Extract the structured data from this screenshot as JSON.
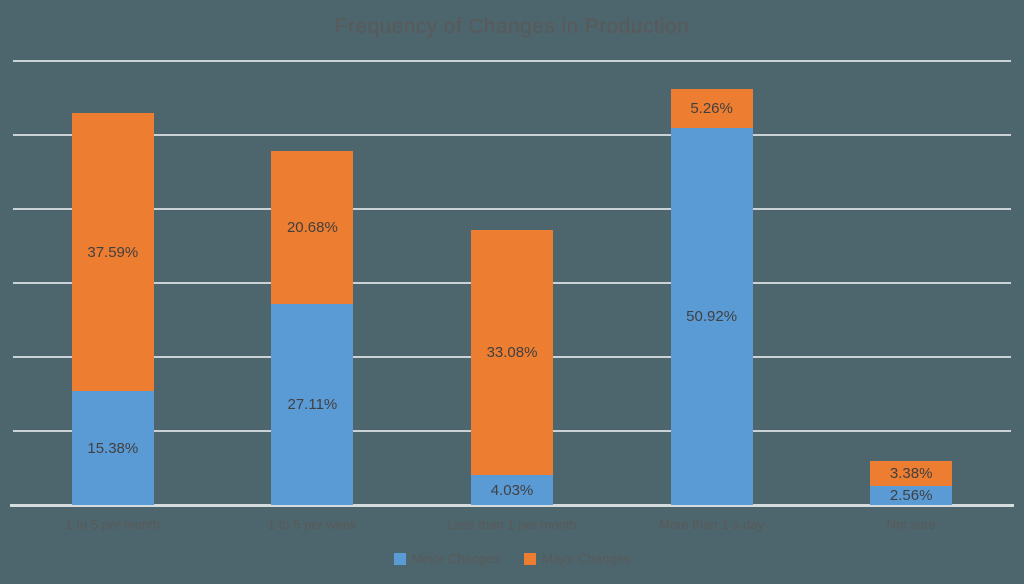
{
  "title": "Frequency of Changes in Production",
  "colors": {
    "background": "#4D666D",
    "gridline": "#CBD2D5",
    "axis_line": "#D6DBDD",
    "title_text": "#595959",
    "axis_text": "#595959",
    "data_label_text": "#404040",
    "minor_changes": "#5B9BD5",
    "major_changes": "#ED7D31"
  },
  "chart_data": {
    "type": "bar",
    "stacked": true,
    "title": "Frequency of Changes in Production",
    "categories": [
      "1 to 5 per month",
      "1 to 5 per week",
      "Less than 1 per month",
      "More than 1 a day",
      "Not sure"
    ],
    "series": [
      {
        "name": "Minor Changes",
        "color": "#5B9BD5",
        "values": [
          15.38,
          27.11,
          4.03,
          50.92,
          2.56
        ],
        "labels": [
          "15.38%",
          "27.11%",
          "4.03%",
          "50.92%",
          "2.56%"
        ]
      },
      {
        "name": "Major Changes",
        "color": "#ED7D31",
        "values": [
          37.59,
          20.68,
          33.08,
          5.26,
          3.38
        ],
        "labels": [
          "37.59%",
          "20.68%",
          "33.08%",
          "5.26%",
          "3.38%"
        ]
      }
    ],
    "xlabel": "",
    "ylabel": "",
    "ylim": [
      0,
      60
    ],
    "grid_step": 10,
    "grid": true,
    "y_axis_tick_labels_visible": false,
    "data_labels": "centered-in-segment",
    "legend_position": "bottom"
  }
}
